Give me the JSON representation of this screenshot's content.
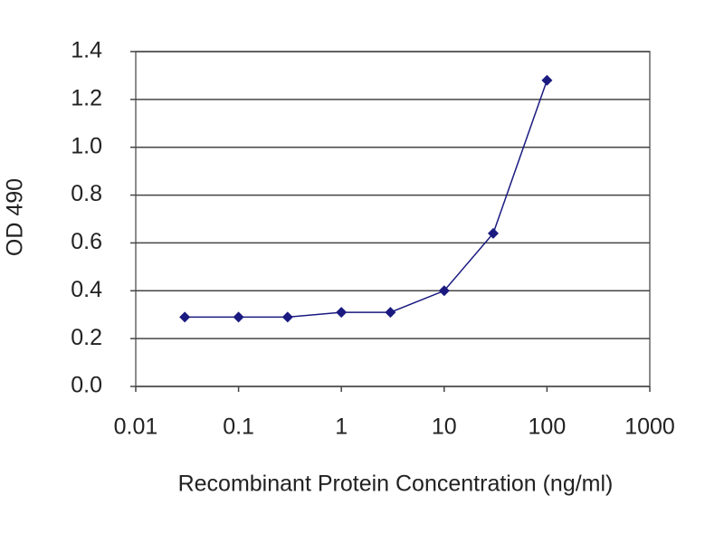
{
  "chart_data": {
    "type": "line",
    "x_label": "Recombinant Protein Concentration (ng/ml)",
    "y_label": "OD 490",
    "x": [
      0.03,
      0.1,
      0.3,
      1,
      3,
      10,
      30,
      100
    ],
    "series": [
      {
        "color": "#1a1a80",
        "values": [
          0.29,
          0.29,
          0.29,
          0.31,
          0.31,
          0.4,
          0.64,
          1.28
        ]
      }
    ],
    "xscale": "log",
    "xlim": [
      0.01,
      1000
    ],
    "xticks": [
      0.01,
      0.1,
      1,
      10,
      100,
      1000
    ],
    "ylim": [
      0,
      1.4
    ],
    "yticks": [
      {
        "value": 0,
        "label": "0.0"
      },
      0.2,
      0.4,
      0.6,
      0.8,
      {
        "value": 1,
        "label": "1.0"
      },
      1.2,
      1.4
    ],
    "grid": true
  }
}
